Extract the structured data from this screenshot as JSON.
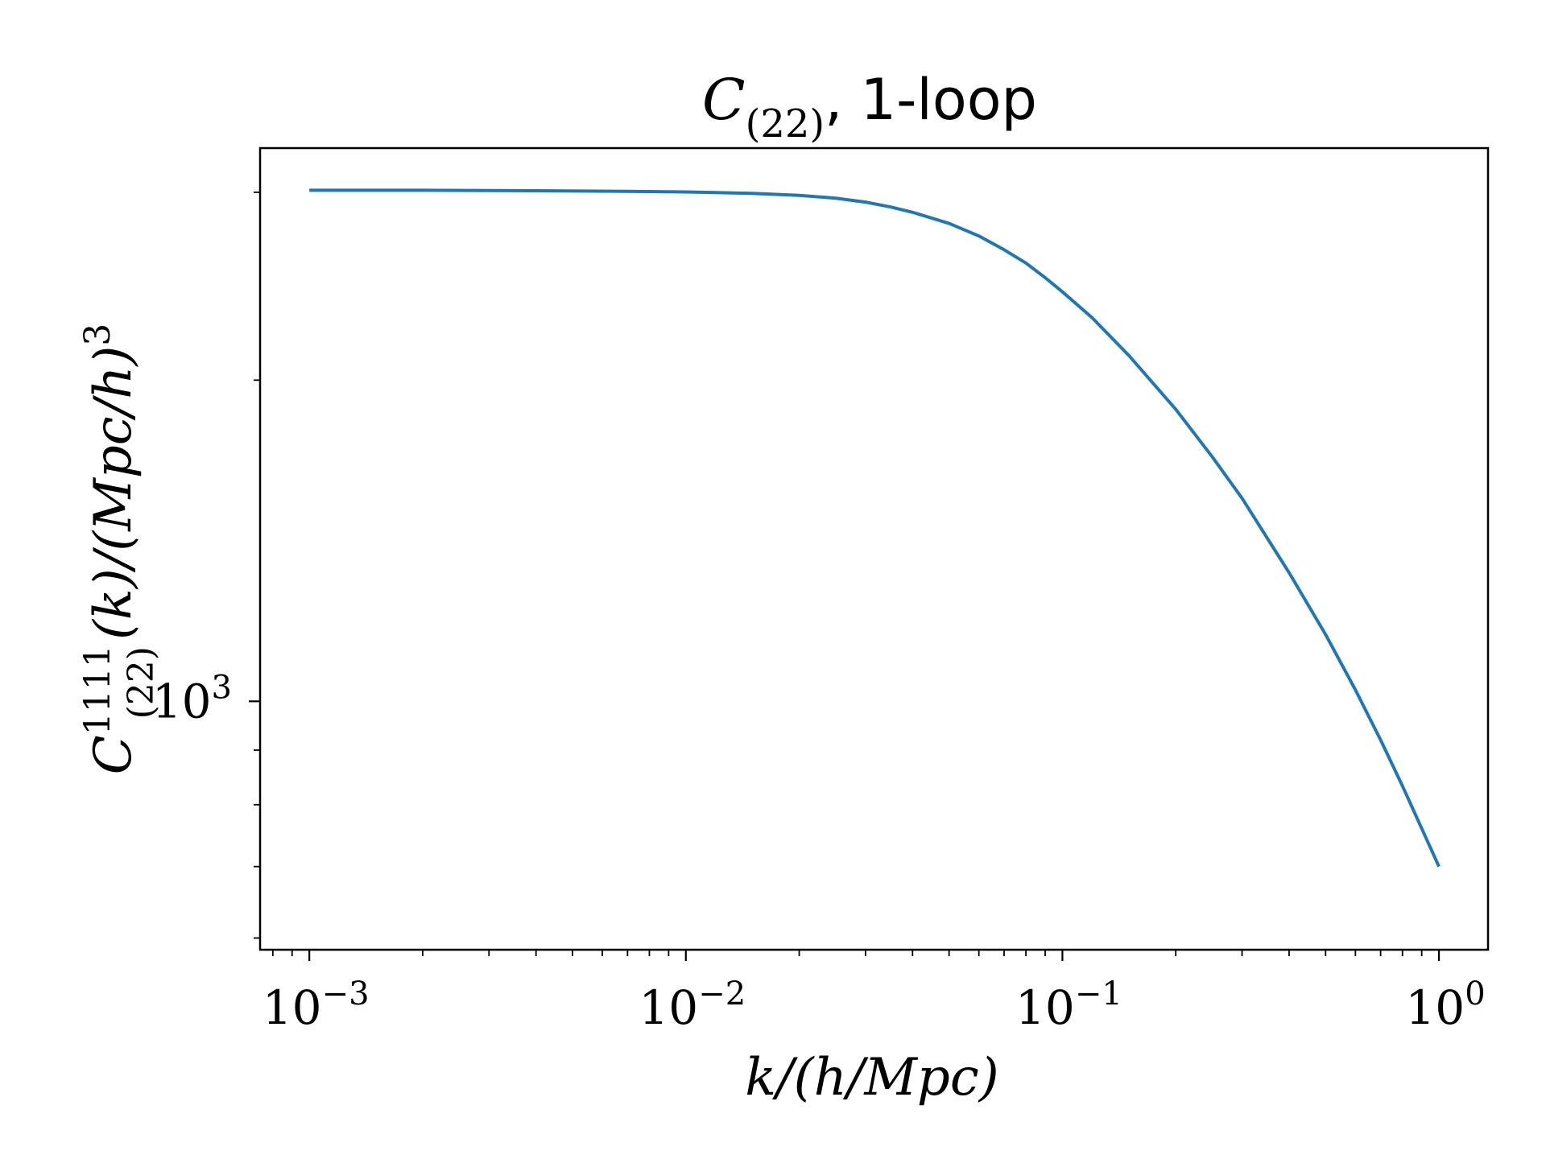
{
  "chart_data": {
    "type": "line",
    "title": {
      "symbol": "C",
      "subscript": "(22)",
      "suffix": ", 1-loop"
    },
    "xlabel": "k/(h/Mpc)",
    "ylabel": {
      "symbol": "C",
      "superscript": "1111",
      "subscript": "(22)",
      "rest": "(k)/(Mpc/h)",
      "power": "3"
    },
    "x_scale": "log",
    "y_scale": "log",
    "xlim": [
      0.00074,
      1.35
    ],
    "ylim": [
      585,
      3300
    ],
    "x_ticks": [
      {
        "value": 0.001,
        "base": "10",
        "exp": "−3"
      },
      {
        "value": 0.01,
        "base": "10",
        "exp": "−2"
      },
      {
        "value": 0.1,
        "base": "10",
        "exp": "−1"
      },
      {
        "value": 1,
        "base": "10",
        "exp": "0"
      }
    ],
    "y_ticks": [
      {
        "value": 1000,
        "base": "10",
        "exp": "3"
      }
    ],
    "grid": false,
    "line_color": "#1f77b4",
    "series": [
      {
        "x": [
          0.001,
          0.002,
          0.004,
          0.007,
          0.01,
          0.015,
          0.02,
          0.025,
          0.03,
          0.035,
          0.04,
          0.05,
          0.06,
          0.07,
          0.08,
          0.09,
          0.1,
          0.12,
          0.15,
          0.2,
          0.25,
          0.3,
          0.4,
          0.5,
          0.6,
          0.7,
          0.8,
          0.9,
          1.0
        ],
        "y": [
          3013,
          3013,
          3010,
          3006,
          3002,
          2993,
          2980,
          2962,
          2937,
          2906,
          2873,
          2805,
          2730,
          2650,
          2575,
          2495,
          2420,
          2288,
          2110,
          1878,
          1695,
          1550,
          1320,
          1155,
          1025,
          920,
          833,
          760,
          700
        ]
      }
    ]
  }
}
